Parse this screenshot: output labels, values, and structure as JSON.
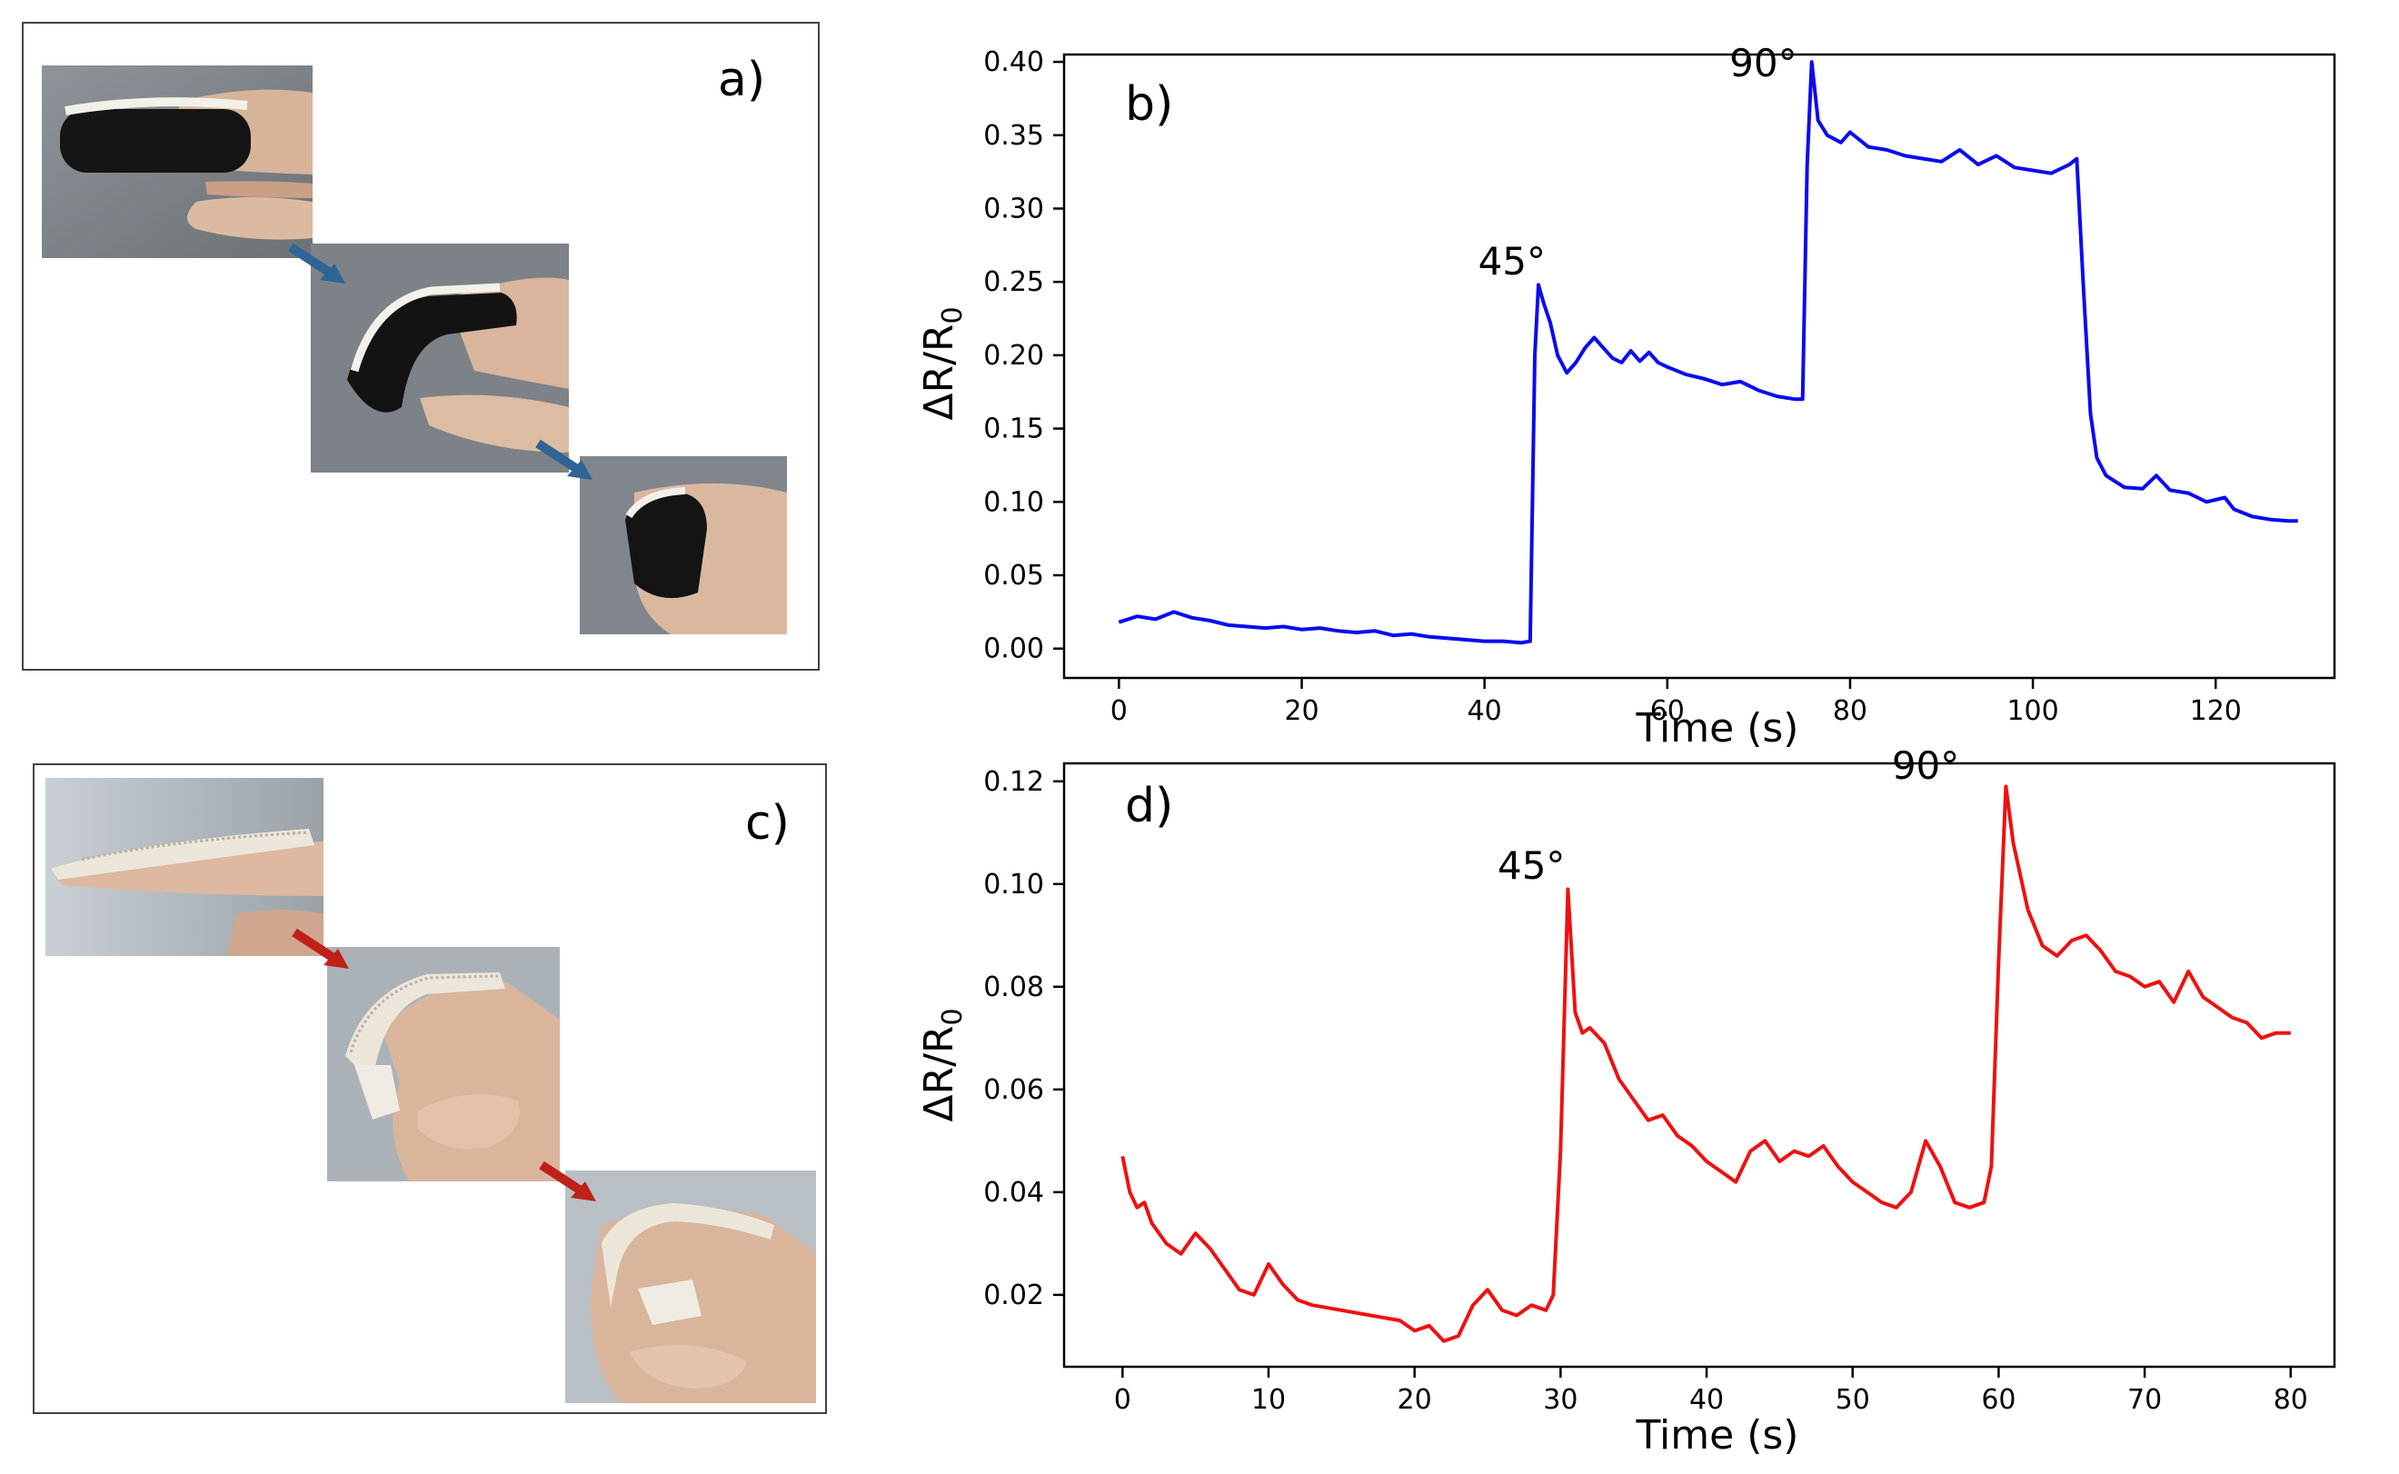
{
  "panels": {
    "a": {
      "label": "a)"
    },
    "c": {
      "label": "c)"
    }
  },
  "colors": {
    "arrow_a": "#2f6496",
    "arrow_c": "#c0201a",
    "sleeve_a": "#141414",
    "sleeve_c": "#ece6da",
    "skin": "#d9b49b"
  },
  "chart_data": [
    {
      "id": "b",
      "type": "line",
      "panel_label": "b)",
      "xlabel": "Time (s)",
      "ylabel": "ΔR/R",
      "ylabel_sub": "0",
      "xlim": [
        -6,
        133
      ],
      "ylim": [
        -0.02,
        0.405
      ],
      "xticks": [
        0,
        20,
        40,
        60,
        80,
        100,
        120
      ],
      "yticks": [
        "0.00",
        "0.05",
        "0.10",
        "0.15",
        "0.20",
        "0.25",
        "0.30",
        "0.35",
        "0.40"
      ],
      "color": "#0b0bf0",
      "annotations": [
        {
          "text": "45°",
          "x": 43.0,
          "y": 0.255
        },
        {
          "text": "90°",
          "x": 70.5,
          "y": 0.39
        }
      ],
      "series": [
        {
          "name": "ΔR/R0",
          "points": [
            [
              0,
              0.018
            ],
            [
              2,
              0.022
            ],
            [
              4,
              0.02
            ],
            [
              6,
              0.025
            ],
            [
              8,
              0.021
            ],
            [
              10,
              0.019
            ],
            [
              12,
              0.016
            ],
            [
              14,
              0.015
            ],
            [
              16,
              0.014
            ],
            [
              18,
              0.015
            ],
            [
              20,
              0.013
            ],
            [
              22,
              0.014
            ],
            [
              24,
              0.012
            ],
            [
              26,
              0.011
            ],
            [
              28,
              0.012
            ],
            [
              30,
              0.009
            ],
            [
              32,
              0.01
            ],
            [
              34,
              0.008
            ],
            [
              36,
              0.007
            ],
            [
              38,
              0.006
            ],
            [
              40,
              0.005
            ],
            [
              42,
              0.005
            ],
            [
              44,
              0.004
            ],
            [
              45,
              0.005
            ],
            [
              45.5,
              0.2
            ],
            [
              45.9,
              0.248
            ],
            [
              46.5,
              0.235
            ],
            [
              47.2,
              0.222
            ],
            [
              48,
              0.2
            ],
            [
              49,
              0.188
            ],
            [
              50,
              0.195
            ],
            [
              51,
              0.205
            ],
            [
              52,
              0.212
            ],
            [
              53,
              0.205
            ],
            [
              54,
              0.198
            ],
            [
              55,
              0.195
            ],
            [
              56,
              0.203
            ],
            [
              57,
              0.196
            ],
            [
              58,
              0.202
            ],
            [
              59,
              0.195
            ],
            [
              60,
              0.192
            ],
            [
              62,
              0.187
            ],
            [
              64,
              0.184
            ],
            [
              66,
              0.18
            ],
            [
              68,
              0.182
            ],
            [
              70,
              0.176
            ],
            [
              72,
              0.172
            ],
            [
              74,
              0.17
            ],
            [
              74.8,
              0.17
            ],
            [
              75.3,
              0.33
            ],
            [
              75.8,
              0.4
            ],
            [
              76.5,
              0.36
            ],
            [
              77.5,
              0.35
            ],
            [
              79,
              0.345
            ],
            [
              80,
              0.352
            ],
            [
              82,
              0.342
            ],
            [
              84,
              0.34
            ],
            [
              86,
              0.336
            ],
            [
              88,
              0.334
            ],
            [
              90,
              0.332
            ],
            [
              92,
              0.34
            ],
            [
              94,
              0.33
            ],
            [
              96,
              0.336
            ],
            [
              98,
              0.328
            ],
            [
              100,
              0.326
            ],
            [
              102,
              0.324
            ],
            [
              104,
              0.33
            ],
            [
              104.8,
              0.334
            ],
            [
              105.5,
              0.25
            ],
            [
              106.3,
              0.16
            ],
            [
              107,
              0.13
            ],
            [
              108,
              0.118
            ],
            [
              110,
              0.11
            ],
            [
              112,
              0.109
            ],
            [
              113.5,
              0.118
            ],
            [
              115,
              0.108
            ],
            [
              117,
              0.106
            ],
            [
              119,
              0.1
            ],
            [
              121,
              0.103
            ],
            [
              122,
              0.095
            ],
            [
              124,
              0.09
            ],
            [
              126,
              0.088
            ],
            [
              128,
              0.087
            ],
            [
              129,
              0.087
            ]
          ]
        }
      ]
    },
    {
      "id": "d",
      "type": "line",
      "panel_label": "d)",
      "xlabel": "Time (s)",
      "ylabel": "ΔR/R",
      "ylabel_sub": "0",
      "xlim": [
        -4,
        83
      ],
      "ylim": [
        0.006,
        0.1235
      ],
      "xticks": [
        0,
        10,
        20,
        30,
        40,
        50,
        60,
        70,
        80
      ],
      "yticks": [
        "0.02",
        "0.04",
        "0.06",
        "0.08",
        "0.10",
        "0.12"
      ],
      "color": "#ee1111",
      "annotations": [
        {
          "text": "45°",
          "x": 28.0,
          "y": 0.101
        },
        {
          "text": "90°",
          "x": 55.0,
          "y": 0.1205
        }
      ],
      "series": [
        {
          "name": "ΔR/R0",
          "points": [
            [
              0,
              0.047
            ],
            [
              0.5,
              0.04
            ],
            [
              1,
              0.037
            ],
            [
              1.5,
              0.038
            ],
            [
              2,
              0.034
            ],
            [
              3,
              0.03
            ],
            [
              4,
              0.028
            ],
            [
              5,
              0.032
            ],
            [
              6,
              0.029
            ],
            [
              7,
              0.025
            ],
            [
              8,
              0.021
            ],
            [
              9,
              0.02
            ],
            [
              10,
              0.026
            ],
            [
              11,
              0.022
            ],
            [
              12,
              0.019
            ],
            [
              13,
              0.018
            ],
            [
              15,
              0.017
            ],
            [
              17,
              0.016
            ],
            [
              19,
              0.015
            ],
            [
              20,
              0.013
            ],
            [
              21,
              0.014
            ],
            [
              22,
              0.011
            ],
            [
              23,
              0.012
            ],
            [
              23.5,
              0.015
            ],
            [
              24,
              0.018
            ],
            [
              25,
              0.021
            ],
            [
              26,
              0.017
            ],
            [
              27,
              0.016
            ],
            [
              28,
              0.018
            ],
            [
              29,
              0.017
            ],
            [
              29.5,
              0.02
            ],
            [
              30,
              0.048
            ],
            [
              30.5,
              0.099
            ],
            [
              31,
              0.075
            ],
            [
              31.5,
              0.071
            ],
            [
              32,
              0.072
            ],
            [
              33,
              0.069
            ],
            [
              34,
              0.062
            ],
            [
              35,
              0.058
            ],
            [
              36,
              0.054
            ],
            [
              37,
              0.055
            ],
            [
              38,
              0.051
            ],
            [
              39,
              0.049
            ],
            [
              40,
              0.046
            ],
            [
              41,
              0.044
            ],
            [
              42,
              0.042
            ],
            [
              43,
              0.048
            ],
            [
              44,
              0.05
            ],
            [
              45,
              0.046
            ],
            [
              46,
              0.048
            ],
            [
              47,
              0.047
            ],
            [
              48,
              0.049
            ],
            [
              49,
              0.045
            ],
            [
              50,
              0.042
            ],
            [
              51,
              0.04
            ],
            [
              52,
              0.038
            ],
            [
              53,
              0.037
            ],
            [
              54,
              0.04
            ],
            [
              55,
              0.05
            ],
            [
              56,
              0.045
            ],
            [
              57,
              0.038
            ],
            [
              58,
              0.037
            ],
            [
              59,
              0.038
            ],
            [
              59.5,
              0.045
            ],
            [
              60,
              0.085
            ],
            [
              60.5,
              0.119
            ],
            [
              61,
              0.108
            ],
            [
              62,
              0.095
            ],
            [
              63,
              0.088
            ],
            [
              64,
              0.086
            ],
            [
              65,
              0.089
            ],
            [
              66,
              0.09
            ],
            [
              67,
              0.087
            ],
            [
              68,
              0.083
            ],
            [
              69,
              0.082
            ],
            [
              70,
              0.08
            ],
            [
              71,
              0.081
            ],
            [
              72,
              0.077
            ],
            [
              73,
              0.083
            ],
            [
              74,
              0.078
            ],
            [
              75,
              0.076
            ],
            [
              76,
              0.074
            ],
            [
              77,
              0.073
            ],
            [
              78,
              0.07
            ],
            [
              79,
              0.071
            ],
            [
              80,
              0.071
            ]
          ]
        }
      ]
    }
  ]
}
